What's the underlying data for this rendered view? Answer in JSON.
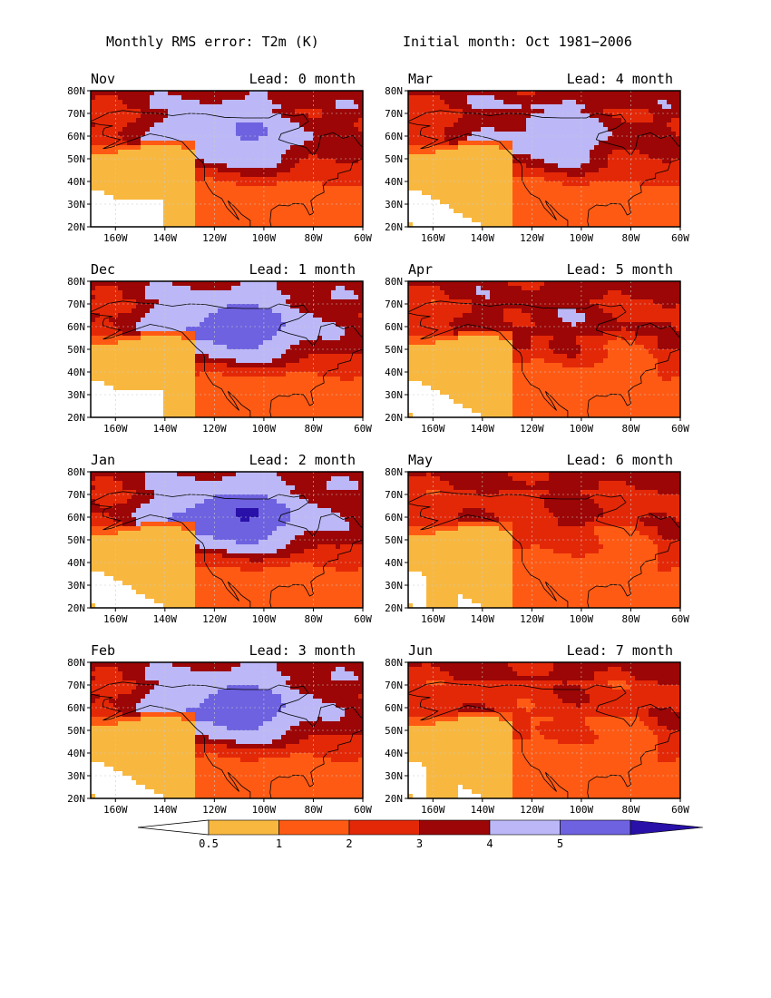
{
  "title": {
    "left": "Monthly RMS error: T2m (K)",
    "right": "Initial month: Oct 1981−2006"
  },
  "panels": [
    {
      "month": "Nov",
      "lead": "Lead: 0 month"
    },
    {
      "month": "Mar",
      "lead": "Lead: 4 month"
    },
    {
      "month": "Dec",
      "lead": "Lead: 1 month"
    },
    {
      "month": "Apr",
      "lead": "Lead: 5 month"
    },
    {
      "month": "Jan",
      "lead": "Lead: 2 month"
    },
    {
      "month": "May",
      "lead": "Lead: 6 month"
    },
    {
      "month": "Feb",
      "lead": "Lead: 3 month"
    },
    {
      "month": "Jun",
      "lead": "Lead: 7 month"
    }
  ],
  "axes": {
    "lat_labels": [
      "80N",
      "70N",
      "60N",
      "50N",
      "40N",
      "30N",
      "20N"
    ],
    "lon_labels": [
      "160W",
      "140W",
      "120W",
      "100W",
      "80W",
      "60W"
    ]
  },
  "colorbar": {
    "labels": [
      "0.5",
      "1",
      "2",
      "3",
      "4",
      "5"
    ],
    "colors": [
      "#ffffff",
      "#f8b840",
      "#ff5a14",
      "#e32808",
      "#9c0606",
      "#bcb8f8",
      "#6e62e0",
      "#2810a8"
    ]
  },
  "colors": {
    "c05_1": "#f8b840",
    "c1_2": "#ff5a14",
    "c2_3": "#e32808",
    "c3_4": "#9c0606",
    "c4_5": "#bcb8f8",
    "c5": "#6e62e0",
    "cgt5": "#2810a8"
  }
}
